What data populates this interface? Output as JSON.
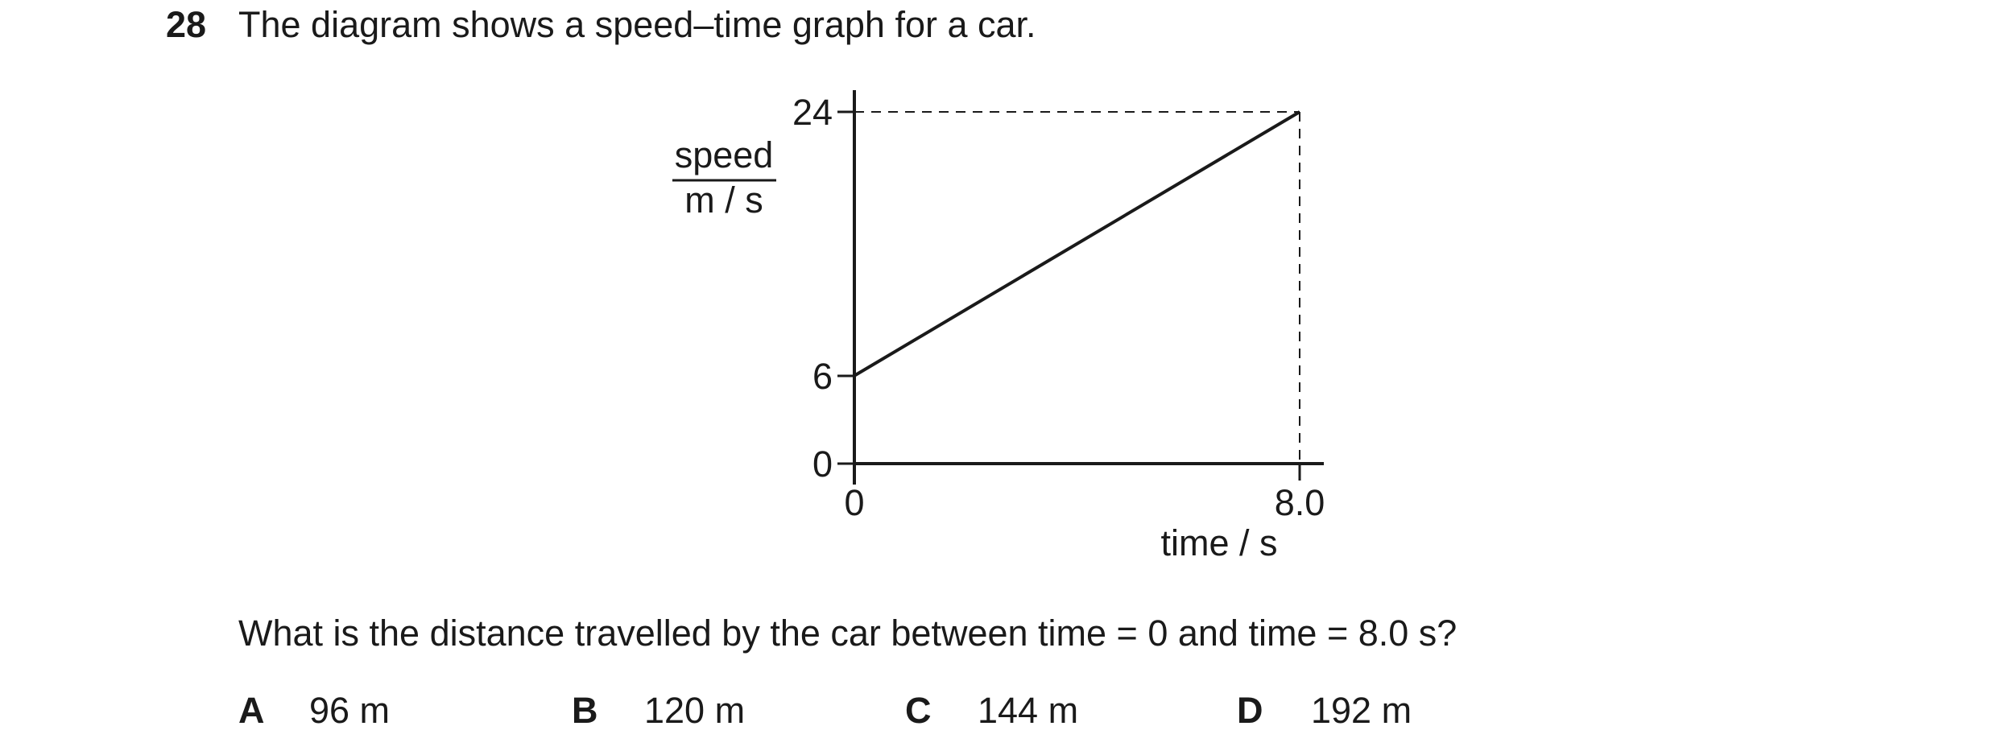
{
  "question": {
    "number": "28",
    "stem": "The diagram shows a speed–time graph for a car.",
    "prompt": "What is the distance travelled by the car between time = 0 and time = 8.0 s?",
    "options": [
      {
        "letter": "A",
        "value": "96 m"
      },
      {
        "letter": "B",
        "value": "120 m"
      },
      {
        "letter": "C",
        "value": "144 m"
      },
      {
        "letter": "D",
        "value": "192 m"
      }
    ]
  },
  "graph": {
    "y_label_top": "speed",
    "y_label_bottom": "m / s",
    "x_label": "time / s",
    "y_ticks": [
      "24",
      "6",
      "0"
    ],
    "x_ticks": [
      "0",
      "8.0"
    ],
    "line": {
      "x": [
        0,
        8.0
      ],
      "y": [
        6,
        24
      ]
    }
  }
}
